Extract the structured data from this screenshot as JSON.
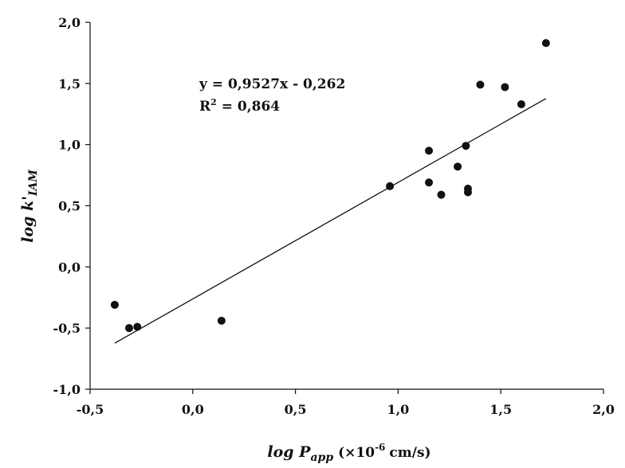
{
  "chart_data": {
    "type": "scatter",
    "xlim": [
      -0.5,
      2.0
    ],
    "ylim": [
      -1.0,
      2.0
    ],
    "x_ticks": [
      -0.5,
      0.0,
      0.5,
      1.0,
      1.5,
      2.0
    ],
    "y_ticks": [
      -1.0,
      -0.5,
      0.0,
      0.5,
      1.0,
      1.5,
      2.0
    ],
    "x_tick_labels": [
      "-0,5",
      "0,0",
      "0,5",
      "1,0",
      "1,5",
      "2,0"
    ],
    "y_tick_labels": [
      "-1,0",
      "-0,5",
      "0,0",
      "0,5",
      "1,0",
      "1,5",
      "2,0"
    ],
    "xlabel": {
      "main": "log P",
      "subscript": "app",
      "unit_prefix": "(×10",
      "exponent": "-6",
      "unit_suffix": "cm/s)"
    },
    "ylabel": {
      "main": "log k'",
      "subscript": "IAM"
    },
    "grid": false,
    "legend": "none",
    "colors": {
      "points": "#111111",
      "trendline": "#111111",
      "axes": "#111111"
    },
    "points": [
      {
        "x": -0.38,
        "y": -0.31
      },
      {
        "x": -0.31,
        "y": -0.5
      },
      {
        "x": -0.27,
        "y": -0.49
      },
      {
        "x": 0.14,
        "y": -0.44
      },
      {
        "x": 0.96,
        "y": 0.66
      },
      {
        "x": 1.15,
        "y": 0.95
      },
      {
        "x": 1.15,
        "y": 0.69
      },
      {
        "x": 1.21,
        "y": 0.59
      },
      {
        "x": 1.29,
        "y": 0.82
      },
      {
        "x": 1.33,
        "y": 0.99
      },
      {
        "x": 1.34,
        "y": 0.64
      },
      {
        "x": 1.34,
        "y": 0.61
      },
      {
        "x": 1.4,
        "y": 1.49
      },
      {
        "x": 1.52,
        "y": 1.47
      },
      {
        "x": 1.6,
        "y": 1.33
      },
      {
        "x": 1.72,
        "y": 1.83
      }
    ],
    "trendline": {
      "slope": 0.9527,
      "intercept": -0.262,
      "x_range": [
        -0.38,
        1.72
      ],
      "equation_text": "y = 0,9527x - 0,262",
      "r2_prefix": "R",
      "r2_exponent": "2",
      "r2_value": " = 0,864"
    }
  }
}
